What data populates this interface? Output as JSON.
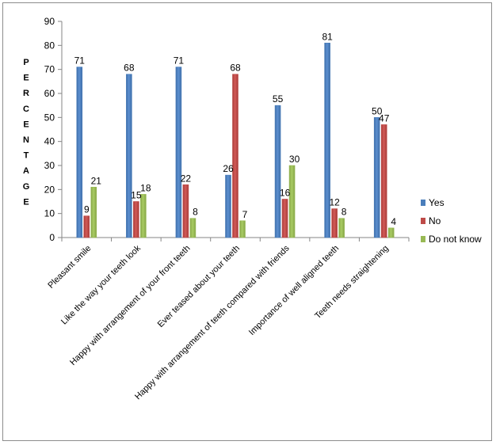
{
  "chart_data": {
    "type": "bar",
    "title": "",
    "xlabel": "",
    "ylabel": "PERCENTAGE",
    "ylim": [
      0,
      90
    ],
    "ytick_step": 10,
    "grid": false,
    "legend_position": "right",
    "categories": [
      "Pleasant smile",
      "Like the way your teeth look",
      "Happy with arrangement of your front teeth",
      "Ever teased about your teeth",
      "Happy with arrangement of teeth compared with friends",
      "Importance of well aligned teeth",
      "Teeth needs straightening"
    ],
    "series": [
      {
        "name": "Yes",
        "color": "#4a7ebb",
        "values": [
          71,
          68,
          71,
          26,
          55,
          81,
          50
        ]
      },
      {
        "name": "No",
        "color": "#be4b48",
        "values": [
          9,
          15,
          22,
          68,
          16,
          12,
          47
        ]
      },
      {
        "name": "Do not know",
        "color": "#98b954",
        "values": [
          21,
          18,
          8,
          7,
          30,
          8,
          4
        ]
      }
    ]
  }
}
